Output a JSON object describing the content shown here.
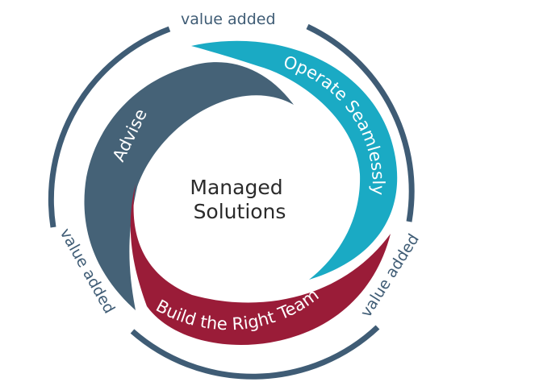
{
  "diagram": {
    "center": {
      "line1": "Managed",
      "line2": "Solutions"
    },
    "segments": [
      {
        "label": "Operate Seamlessly",
        "color": "#1aaac4"
      },
      {
        "label": "Build the Right Team",
        "color": "#9a1c38"
      },
      {
        "label": "Advise",
        "color": "#456277"
      }
    ],
    "value_labels": [
      "value added",
      "value added",
      "value added"
    ],
    "ring_color": "#3f5c75"
  }
}
